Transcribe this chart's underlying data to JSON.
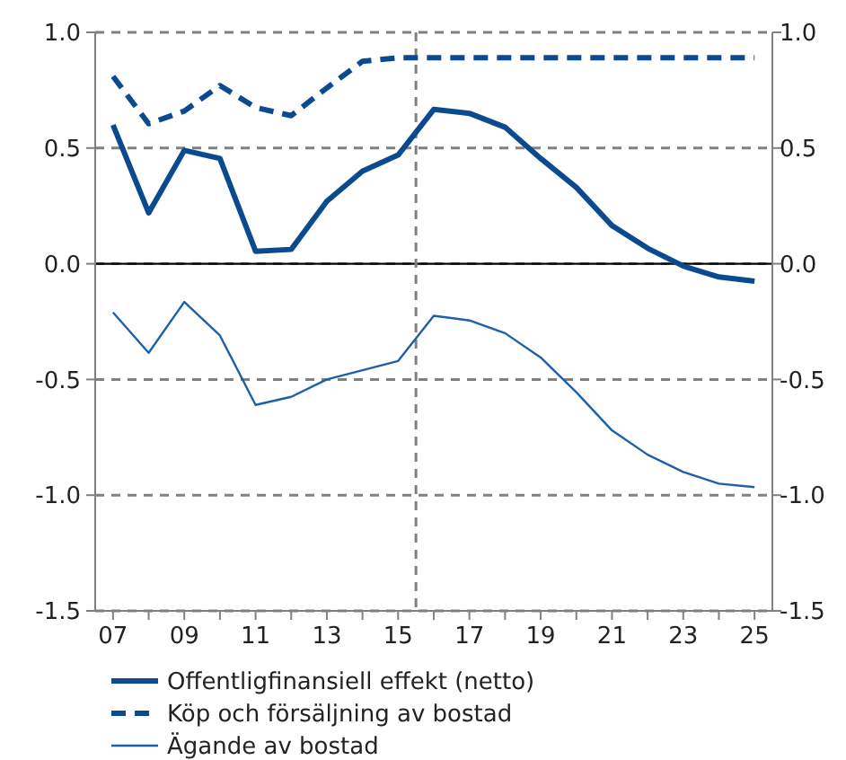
{
  "chart_data": {
    "type": "line",
    "x": [
      2007,
      2008,
      2009,
      2010,
      2011,
      2012,
      2013,
      2014,
      2015,
      2016,
      2017,
      2018,
      2019,
      2020,
      2021,
      2022,
      2023,
      2024,
      2025
    ],
    "xlim": [
      2006.5,
      2025.5
    ],
    "xticks": [
      {
        "value": 2007,
        "label": "07"
      },
      {
        "value": 2008,
        "label": null
      },
      {
        "value": 2009,
        "label": "09"
      },
      {
        "value": 2010,
        "label": null
      },
      {
        "value": 2011,
        "label": "11"
      },
      {
        "value": 2012,
        "label": null
      },
      {
        "value": 2013,
        "label": "13"
      },
      {
        "value": 2014,
        "label": null
      },
      {
        "value": 2015,
        "label": "15"
      },
      {
        "value": 2016,
        "label": null
      },
      {
        "value": 2017,
        "label": "17"
      },
      {
        "value": 2018,
        "label": null
      },
      {
        "value": 2019,
        "label": "19"
      },
      {
        "value": 2020,
        "label": null
      },
      {
        "value": 2021,
        "label": "21"
      },
      {
        "value": 2022,
        "label": null
      },
      {
        "value": 2023,
        "label": "23"
      },
      {
        "value": 2024,
        "label": null
      },
      {
        "value": 2025,
        "label": "25"
      }
    ],
    "ylim": [
      -1.5,
      1.0
    ],
    "yticks": [
      {
        "value": -1.5,
        "label": "-1.5"
      },
      {
        "value": -1.0,
        "label": "-1.0"
      },
      {
        "value": -0.5,
        "label": "-0.5"
      },
      {
        "value": 0,
        "label": "0.0"
      },
      {
        "value": 0.5,
        "label": "0.5"
      },
      {
        "value": 1.0,
        "label": "1.0"
      }
    ],
    "y2lim": [
      -1.5,
      1.0
    ],
    "y2ticks": [
      {
        "value": -1.5,
        "label": "-1.5"
      },
      {
        "value": -1.0,
        "label": "-1.0"
      },
      {
        "value": -0.5,
        "label": "-0.5"
      },
      {
        "value": 0,
        "label": "0.0"
      },
      {
        "value": 0.5,
        "label": "0.5"
      },
      {
        "value": 1.0,
        "label": "1.0"
      }
    ],
    "grid": "y",
    "legend": "bottom",
    "marker": "none",
    "ref_lines": [
      {
        "axis": "y",
        "value": 0,
        "color": "#000000",
        "line_style": "solid"
      },
      {
        "axis": "x",
        "value": 2015.5,
        "color": "#808080",
        "line_style": "dashed"
      }
    ],
    "series": [
      {
        "name": "Offentligfinansiell effekt (netto)",
        "color": "#0b4a8f",
        "line_style": "solid",
        "values": [
          0.6,
          0.22,
          0.49,
          0.455,
          0.054,
          0.062,
          0.27,
          0.4,
          0.47,
          0.667,
          0.65,
          0.59,
          0.455,
          0.33,
          0.165,
          0.067,
          -0.01,
          -0.057,
          -0.075
        ]
      },
      {
        "name": "Köp och försäljning av bostad",
        "color": "#0b4a8f",
        "line_style": "dashed",
        "values": [
          0.81,
          0.605,
          0.66,
          0.77,
          0.675,
          0.64,
          0.76,
          0.875,
          0.89,
          0.89,
          0.89,
          0.89,
          0.89,
          0.89,
          0.89,
          0.89,
          0.89,
          0.89,
          0.89
        ]
      },
      {
        "name": "Ägande av bostad",
        "color": "#1f5fa8",
        "line_style": "solid",
        "values": [
          -0.21,
          -0.385,
          -0.165,
          -0.31,
          -0.61,
          -0.575,
          -0.5,
          -0.46,
          -0.42,
          -0.225,
          -0.245,
          -0.3,
          -0.405,
          -0.555,
          -0.72,
          -0.825,
          -0.9,
          -0.95,
          -0.965
        ]
      }
    ]
  }
}
